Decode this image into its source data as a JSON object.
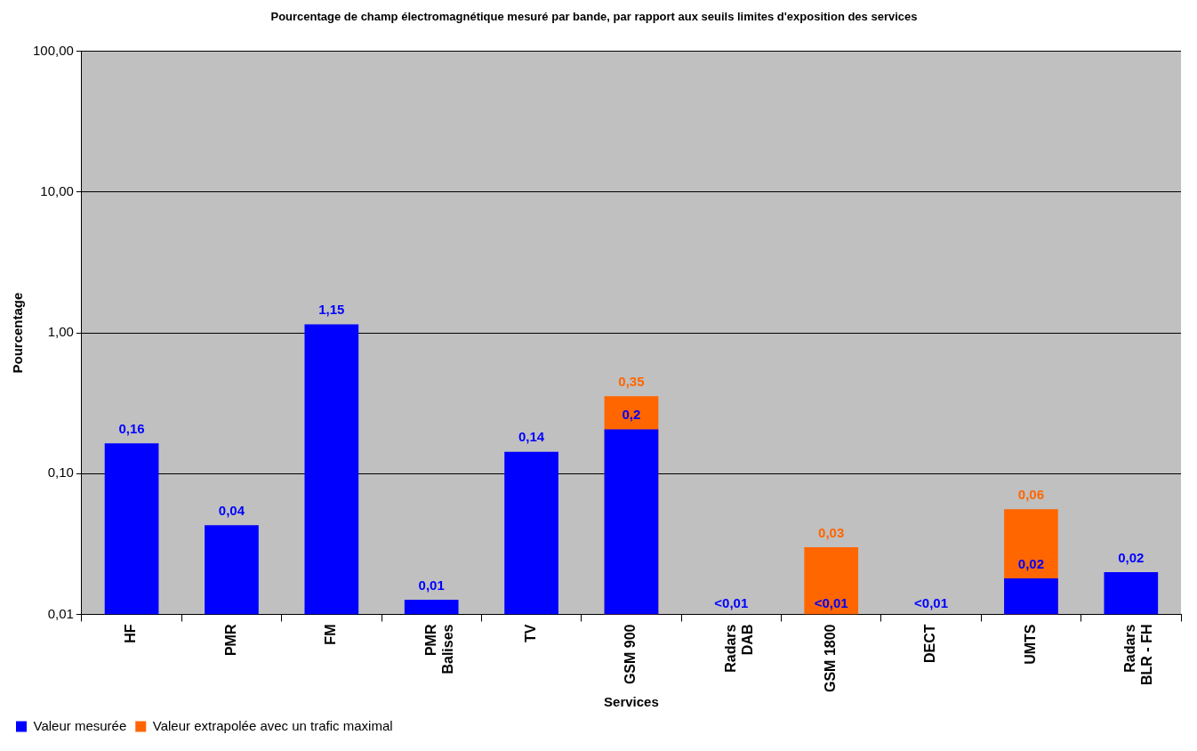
{
  "chart_data": {
    "type": "bar",
    "title": "Pourcentage de champ électromagnétique mesuré par bande, par rapport aux seuils limites d'exposition des services",
    "xlabel": "Services",
    "ylabel": "Pourcentage",
    "categories": [
      "HF",
      "PMR",
      "FM",
      "PMR\nBalises",
      "TV",
      "GSM 900",
      "Radars\nDAB",
      "GSM 1800",
      "DECT",
      "UMTS",
      "Radars\nBLR - FH"
    ],
    "series": [
      {
        "name": "Valeur extrapolée avec un trafic maximal",
        "color": "#ff6600",
        "values": [
          null,
          null,
          null,
          null,
          null,
          0.355,
          null,
          0.03,
          null,
          0.056,
          null
        ],
        "value_labels": [
          null,
          null,
          null,
          null,
          null,
          "0,35",
          null,
          "0,03",
          null,
          "0,06",
          null
        ]
      },
      {
        "name": "Valeur mesurée",
        "color": "#0000ff",
        "values": [
          0.164,
          0.043,
          1.15,
          0.0127,
          0.143,
          0.206,
          null,
          null,
          null,
          0.018,
          0.02
        ],
        "value_labels": [
          "0,16",
          "0,04",
          "1,15",
          "0,01",
          "0,14",
          "0,2",
          "<0,01",
          "<0,01",
          "<0,01",
          "0,02",
          "0,02"
        ]
      }
    ],
    "log": "y",
    "ylim": [
      0.01,
      100
    ],
    "yticks": [
      {
        "value": 0.01,
        "label": "0,01"
      },
      {
        "value": 0.1,
        "label": "0,10"
      },
      {
        "value": 1,
        "label": "1,00"
      },
      {
        "value": 10,
        "label": "10,00"
      },
      {
        "value": 100,
        "label": "100,00"
      }
    ],
    "grid": "y",
    "legend": "bottom left"
  }
}
